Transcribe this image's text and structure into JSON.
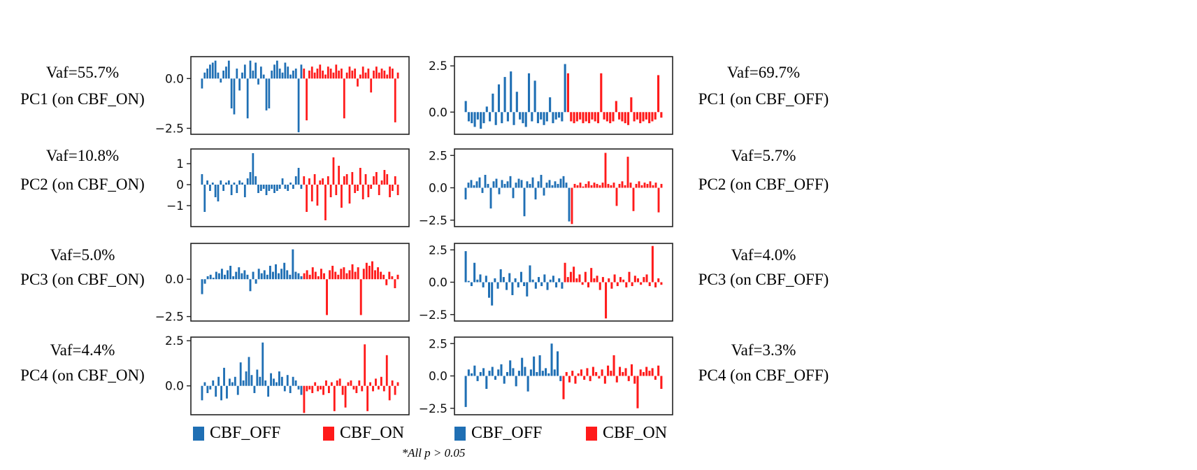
{
  "colors": {
    "cbf_off": "#1f6fb4",
    "cbf_on": "#ff1a1a"
  },
  "labels": {
    "left": [
      {
        "vaf": "Vaf=55.7%",
        "pc": "PC1 (on CBF_ON)"
      },
      {
        "vaf": "Vaf=10.8%",
        "pc": "PC2 (on CBF_ON)"
      },
      {
        "vaf": "Vaf=5.0%",
        "pc": "PC3 (on CBF_ON)"
      },
      {
        "vaf": "Vaf=4.4%",
        "pc": "PC4 (on CBF_ON)"
      }
    ],
    "right": [
      {
        "vaf": "Vaf=69.7%",
        "pc": "PC1 (on CBF_OFF)"
      },
      {
        "vaf": "Vaf=5.7%",
        "pc": "PC2 (on CBF_OFF)"
      },
      {
        "vaf": "Vaf=4.0%",
        "pc": "PC3 (on CBF_OFF)"
      },
      {
        "vaf": "Vaf=3.3%",
        "pc": "PC4 (on CBF_OFF)"
      }
    ]
  },
  "legend": [
    "CBF_OFF",
    "CBF_ON",
    "CBF_OFF",
    "CBF_ON"
  ],
  "note": "*All p > 0.05",
  "chart_data": [
    {
      "id": "L1",
      "type": "bar",
      "ylim": [
        -2.8,
        1.1
      ],
      "yticks": [
        0.0,
        -2.5
      ],
      "ytick_labels": [
        "0.0",
        "−2.5"
      ],
      "series_names": [
        "CBF_OFF",
        "CBF_ON"
      ],
      "off": [
        -0.5,
        0.3,
        0.5,
        0.7,
        0.8,
        0.9,
        0.3,
        -0.2,
        0.4,
        0.6,
        0.9,
        -1.5,
        -1.8,
        0.5,
        -0.6,
        0.3,
        0.7,
        -2.0,
        0.9,
        0.4,
        0.8,
        -0.3,
        0.6,
        0.2,
        -1.6,
        -1.5,
        0.4,
        0.7,
        0.9,
        0.5,
        0.3,
        0.8,
        0.6,
        0.2,
        0.4,
        0.5,
        -2.7,
        0.7
      ],
      "on": [
        0.5,
        -2.1,
        0.4,
        0.6,
        0.3,
        0.5,
        0.7,
        0.4,
        0.2,
        0.6,
        0.5,
        0.3,
        0.7,
        0.4,
        0.5,
        -2.0,
        0.3,
        0.6,
        0.4,
        0.5,
        -0.4,
        0.2,
        0.6,
        0.3,
        0.5,
        -0.7,
        0.4,
        0.6,
        0.3,
        0.5,
        0.4,
        0.2,
        0.6,
        0.5,
        -2.2,
        0.3
      ]
    },
    {
      "id": "R1",
      "type": "bar",
      "ylim": [
        -1.2,
        3.0
      ],
      "yticks": [
        2.5,
        0.0
      ],
      "ytick_labels": [
        "2.5",
        "0.0"
      ],
      "series_names": [
        "CBF_OFF",
        "CBF_ON"
      ],
      "off": [
        0.6,
        -0.5,
        -0.6,
        -0.8,
        -0.4,
        -0.9,
        -0.6,
        0.3,
        -0.5,
        1.0,
        -0.7,
        1.5,
        -0.6,
        1.9,
        -0.5,
        2.2,
        -0.7,
        1.1,
        -0.4,
        -0.6,
        -0.8,
        2.1,
        -0.5,
        1.7,
        -0.6,
        -0.4,
        -0.7,
        -0.5,
        0.8,
        -0.6,
        -0.4,
        -0.3,
        -0.5,
        2.6
      ],
      "on": [
        2.1,
        -0.5,
        -0.6,
        -0.5,
        -0.4,
        -0.6,
        -0.5,
        -0.6,
        -0.4,
        -0.5,
        -0.6,
        2.1,
        -0.4,
        -0.5,
        -0.6,
        -0.5,
        0.6,
        -0.4,
        -0.5,
        -0.6,
        -0.7,
        0.8,
        -0.5,
        -0.4,
        -0.6,
        -0.5,
        -0.4,
        -0.6,
        -0.5,
        -0.4,
        2.0,
        -0.3
      ]
    },
    {
      "id": "L2",
      "type": "bar",
      "ylim": [
        -2.0,
        1.7
      ],
      "yticks": [
        1,
        0,
        -1
      ],
      "ytick_labels": [
        "1",
        "0",
        "−1"
      ],
      "series_names": [
        "CBF_OFF",
        "CBF_ON"
      ],
      "off": [
        0.5,
        -1.3,
        0.2,
        -0.3,
        0.1,
        -0.6,
        -0.8,
        0.2,
        -0.3,
        0.1,
        0.2,
        -0.5,
        0.1,
        -0.4,
        0.2,
        0.1,
        -0.6,
        0.3,
        0.6,
        1.5,
        0.4,
        -0.4,
        -0.3,
        -0.2,
        -0.5,
        -0.3,
        -0.2,
        -0.4,
        -0.3,
        -0.2,
        0.3,
        -0.2,
        -0.3,
        0.1,
        -0.2,
        0.4,
        0.8,
        -0.2
      ],
      "on": [
        0.4,
        -1.3,
        0.3,
        -0.8,
        0.5,
        -1.0,
        0.2,
        0.3,
        -1.7,
        0.4,
        -0.6,
        1.3,
        -0.5,
        0.9,
        -1.1,
        0.4,
        0.5,
        -0.9,
        0.6,
        -0.4,
        -0.3,
        0.8,
        -0.7,
        0.5,
        -0.6,
        -0.2,
        0.4,
        0.6,
        -0.5,
        0.2,
        0.7,
        0.5,
        -0.6,
        -0.3,
        0.4,
        -0.5
      ]
    },
    {
      "id": "R2",
      "type": "bar",
      "ylim": [
        -3.0,
        3.0
      ],
      "yticks": [
        2.5,
        0.0,
        -2.5
      ],
      "ytick_labels": [
        "2.5",
        "0.0",
        "−2.5"
      ],
      "series_names": [
        "CBF_OFF",
        "CBF_ON"
      ],
      "off": [
        -0.9,
        0.4,
        0.6,
        0.2,
        0.5,
        0.8,
        -0.4,
        1.0,
        0.3,
        -1.6,
        0.5,
        0.7,
        -0.5,
        0.6,
        0.3,
        0.5,
        0.9,
        -0.8,
        0.4,
        0.7,
        0.6,
        -2.2,
        0.5,
        0.3,
        0.8,
        -0.9,
        0.5,
        1.0,
        -0.6,
        0.4,
        0.6,
        0.2,
        0.5,
        0.3,
        0.7,
        0.9,
        0.4,
        -2.6
      ],
      "on": [
        -2.8,
        0.3,
        0.2,
        0.4,
        0.1,
        0.3,
        0.5,
        0.2,
        0.4,
        0.3,
        0.2,
        0.4,
        2.7,
        0.3,
        0.2,
        0.4,
        -1.4,
        0.3,
        0.5,
        0.2,
        2.4,
        0.4,
        -1.8,
        0.3,
        0.5,
        0.2,
        0.4,
        0.3,
        0.5,
        0.2,
        0.4,
        -1.9,
        0.3
      ]
    },
    {
      "id": "L3",
      "type": "bar",
      "ylim": [
        -2.8,
        2.4
      ],
      "yticks": [
        0.0,
        -2.5
      ],
      "ytick_labels": [
        "0.0",
        "−2.5"
      ],
      "series_names": [
        "CBF_OFF",
        "CBF_ON"
      ],
      "off": [
        -1.0,
        -0.3,
        0.2,
        0.3,
        0.1,
        0.5,
        0.4,
        0.7,
        0.3,
        0.6,
        0.9,
        0.2,
        0.5,
        0.8,
        0.4,
        0.6,
        0.3,
        -0.8,
        0.5,
        -0.3,
        0.7,
        0.4,
        0.6,
        0.3,
        0.9,
        0.5,
        1.0,
        0.4,
        0.7,
        1.1,
        0.6,
        0.3,
        2.0,
        0.5,
        0.4,
        0.2
      ],
      "on": [
        0.4,
        0.6,
        0.3,
        0.8,
        0.5,
        0.2,
        0.7,
        0.4,
        -2.4,
        0.6,
        0.9,
        0.5,
        0.3,
        0.7,
        0.8,
        0.4,
        0.6,
        1.0,
        0.5,
        0.8,
        -2.4,
        0.7,
        1.1,
        0.9,
        1.2,
        0.6,
        0.8,
        0.5,
        0.3,
        -0.4,
        0.5,
        0.2,
        -0.6,
        0.3
      ]
    },
    {
      "id": "R3",
      "type": "bar",
      "ylim": [
        -3.0,
        3.0
      ],
      "yticks": [
        2.5,
        0.0,
        -2.5
      ],
      "ytick_labels": [
        "2.5",
        "0.0",
        "−2.5"
      ],
      "series_names": [
        "CBF_OFF",
        "CBF_ON"
      ],
      "off": [
        2.4,
        0.1,
        -0.3,
        1.5,
        0.2,
        0.6,
        -0.4,
        0.5,
        -1.2,
        -1.8,
        0.3,
        -0.5,
        1.0,
        0.4,
        -0.6,
        0.7,
        -1.0,
        0.3,
        -0.4,
        0.8,
        -0.3,
        -1.1,
        1.3,
        0.2,
        -0.5,
        0.4,
        -0.3,
        0.6,
        -0.6,
        0.2,
        0.5,
        -0.4,
        0.3,
        -0.5
      ],
      "on": [
        1.5,
        0.4,
        0.8,
        1.2,
        0.3,
        0.6,
        -0.2,
        0.8,
        -0.4,
        1.1,
        0.3,
        0.5,
        -0.6,
        0.4,
        -2.8,
        0.3,
        -0.5,
        0.6,
        -0.3,
        0.4,
        0.2,
        -0.4,
        0.8,
        -0.3,
        0.5,
        0.3,
        -0.2,
        0.4,
        0.6,
        -0.3,
        2.8,
        -0.4,
        0.3,
        -0.2
      ]
    },
    {
      "id": "L4",
      "type": "bar",
      "ylim": [
        -1.6,
        2.7
      ],
      "yticks": [
        2.5,
        0.0
      ],
      "ytick_labels": [
        "2.5",
        "0.0"
      ],
      "series_names": [
        "CBF_OFF",
        "CBF_ON"
      ],
      "off": [
        -0.8,
        0.2,
        -0.4,
        -0.2,
        0.3,
        -0.6,
        0.5,
        -0.8,
        1.0,
        -0.7,
        0.4,
        0.2,
        0.5,
        -0.5,
        1.3,
        0.3,
        0.8,
        1.6,
        0.6,
        -0.4,
        0.9,
        0.5,
        2.4,
        0.3,
        -0.6,
        0.7,
        0.4,
        0.2,
        0.8,
        0.5,
        -0.3,
        0.6,
        -0.4,
        0.5,
        0.3,
        -0.2,
        -0.5
      ],
      "on": [
        -1.5,
        -0.3,
        -0.2,
        -0.4,
        0.2,
        -0.3,
        -0.2,
        -0.5,
        0.3,
        -0.4,
        0.2,
        -1.4,
        0.3,
        0.4,
        -0.5,
        -1.2,
        0.2,
        0.3,
        -0.2,
        -0.4,
        0.3,
        -0.3,
        2.3,
        -1.4,
        0.2,
        -0.3,
        0.4,
        -0.2,
        0.5,
        -0.3,
        1.7,
        -0.8,
        0.3,
        -0.5,
        0.2
      ]
    },
    {
      "id": "R4",
      "type": "bar",
      "ylim": [
        -3.0,
        3.0
      ],
      "yticks": [
        2.5,
        0.0,
        -2.5
      ],
      "ytick_labels": [
        "2.5",
        "0.0",
        "−2.5"
      ],
      "series_names": [
        "CBF_OFF",
        "CBF_ON"
      ],
      "off": [
        -2.4,
        0.5,
        0.2,
        0.8,
        -0.4,
        0.3,
        0.6,
        -1.0,
        0.4,
        0.7,
        -0.3,
        0.5,
        0.9,
        -0.6,
        0.3,
        1.2,
        0.6,
        -0.8,
        0.4,
        1.4,
        0.7,
        -1.2,
        0.5,
        1.5,
        0.3,
        1.6,
        0.4,
        0.6,
        0.2,
        2.5,
        0.5,
        1.9,
        -0.4
      ],
      "on": [
        -1.8,
        0.3,
        -0.5,
        0.4,
        -0.6,
        0.2,
        0.5,
        -0.3,
        0.6,
        -0.4,
        0.7,
        0.3,
        -0.2,
        0.5,
        -0.6,
        0.8,
        0.4,
        1.6,
        -0.5,
        0.7,
        0.3,
        0.6,
        -0.4,
        0.9,
        -0.6,
        -2.5,
        0.5,
        0.3,
        0.7,
        0.4,
        0.6,
        -0.3,
        0.8,
        -1.0
      ]
    }
  ]
}
